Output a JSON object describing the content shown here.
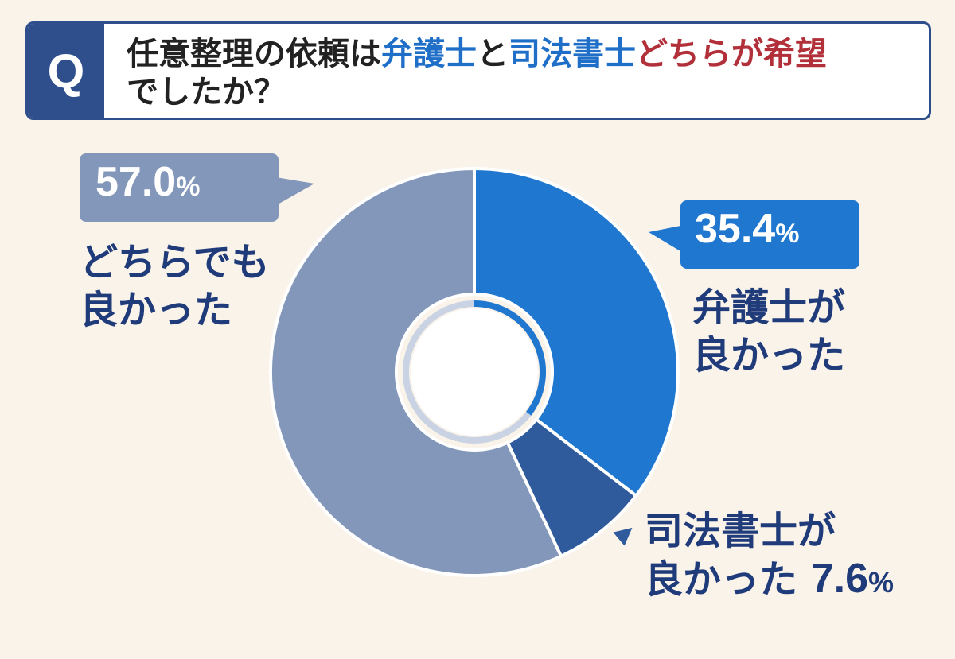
{
  "question": {
    "badge": "Q",
    "line1_part1": "任意整理の依頼は",
    "line1_part2": "弁護士",
    "line1_part3": "と",
    "line1_part4": "司法書士",
    "line1_part5": "どちらが希望",
    "line2": "でしたか？"
  },
  "colors": {
    "header_navy": "#2f4f8c",
    "bengoshi": "#1f77cf",
    "shihoshoshi": "#2f5b9c",
    "dochira": "#8397ba",
    "label_text": "#1f3b7a",
    "highlight_red": "#b2303a",
    "background": "#faf3ea"
  },
  "chart_data": {
    "type": "pie",
    "donut": true,
    "categories": [
      "弁護士が良かった",
      "司法書士が良かった",
      "どちらでも良かった"
    ],
    "values": [
      35.4,
      7.6,
      57.0
    ],
    "unit": "%",
    "labels": {
      "bengoshi": {
        "value": "35.4",
        "unit": "%",
        "line1": "弁護士が",
        "line2": "良かった"
      },
      "shihoshoshi": {
        "line1": "司法書士が",
        "line2_text": "良かった",
        "value": "7.6",
        "unit": "%"
      },
      "dochira": {
        "value": "57.0",
        "unit": "%",
        "line1": "どちらでも",
        "line2": "良かった"
      }
    }
  }
}
